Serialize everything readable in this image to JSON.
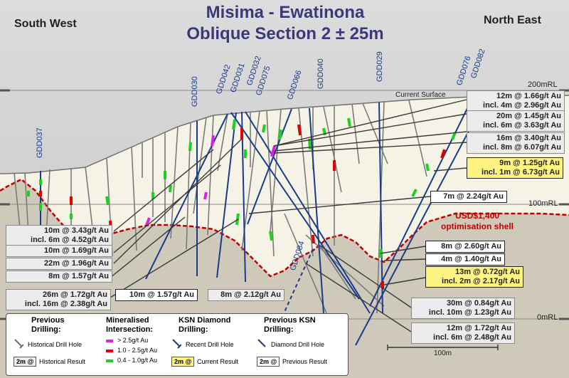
{
  "title": {
    "line1": "Misima - Ewatinona",
    "line2": "Oblique Section 2 ± 25m"
  },
  "directions": {
    "left": "South West",
    "right": "North East"
  },
  "surface_label": "Current Surface",
  "shell_label": {
    "line1": "USD$1,400",
    "line2": "optimisation shell"
  },
  "elevations": [
    {
      "label": "200mRL"
    },
    {
      "label": "100mRL"
    },
    {
      "label": "0mRL"
    }
  ],
  "scale_label": "100m",
  "holes": [
    {
      "name": "GDD037",
      "style": "recent"
    },
    {
      "name": "GDD030",
      "style": "recent"
    },
    {
      "name": "GDD042",
      "style": "recent"
    },
    {
      "name": "GDD031",
      "style": "recent"
    },
    {
      "name": "GDD032",
      "style": "recent"
    },
    {
      "name": "GDD075",
      "style": "recent"
    },
    {
      "name": "GDD066",
      "style": "recent"
    },
    {
      "name": "GDD040",
      "style": "recent"
    },
    {
      "name": "GDD029",
      "style": "recent"
    },
    {
      "name": "GDD076",
      "style": "recent"
    },
    {
      "name": "GDD082",
      "style": "recent"
    },
    {
      "name": "GDD084",
      "style": "planned"
    }
  ],
  "results": [
    {
      "line1": "12m @ 1.66g/t Au",
      "line2": "incl. 4m @ 2.96g/t Au",
      "type": "previous"
    },
    {
      "line1": "20m @ 1.45g/t Au",
      "line2": "incl. 6m @ 3.63g/t Au",
      "type": "previous"
    },
    {
      "line1": "16m @ 3.40g/t Au",
      "line2": "incl. 8m @ 6.07g/t Au",
      "type": "previous"
    },
    {
      "line1": "9m @ 1.25g/t Au",
      "line2": "incl. 1m @ 6.73g/t Au",
      "type": "current"
    },
    {
      "line1": "7m @ 2.24g/t Au",
      "type": "current-white"
    },
    {
      "line1": "10m @ 3.43g/t Au",
      "line2": "incl. 6m @ 4.52g/t Au",
      "type": "previous"
    },
    {
      "line1": "10m @ 1.69g/t Au",
      "type": "previous"
    },
    {
      "line1": "22m @ 1.96g/t Au",
      "type": "previous"
    },
    {
      "line1": "8m @ 1.57g/t Au",
      "type": "previous"
    },
    {
      "line1": "26m @ 1.72g/t Au",
      "line2": "incl. 16m @ 2.38g/t Au",
      "type": "previous"
    },
    {
      "line1": "10m @ 1.57g/t Au",
      "type": "current-white"
    },
    {
      "line1": "8m @ 2.12g/t Au",
      "type": "previous"
    },
    {
      "line1": "8m @ 2.60g/t Au",
      "type": "current-white"
    },
    {
      "line1": "4m @ 1.40g/t Au",
      "type": "current-white"
    },
    {
      "line1": "13m @ 0.72g/t Au",
      "line2": "incl. 2m @ 2.17g/t Au",
      "type": "current"
    },
    {
      "line1": "30m @ 0.84g/t Au",
      "line2": "incl. 10m @ 1.23g/t Au",
      "type": "previous"
    },
    {
      "line1": "12m @ 1.72g/t Au",
      "line2": "incl. 6m @ 2.48g/t Au",
      "type": "previous"
    }
  ],
  "legend": {
    "previous_drilling": {
      "title1": "Previous",
      "title2": "Drilling:",
      "hole_label": "Historical Drill Hole",
      "result_label": "Historical Result",
      "badge": "2m @"
    },
    "mineralised": {
      "title1": "Mineralised",
      "title2": "Intersection:",
      "items": [
        {
          "label": "> 2.5g/t Au",
          "color": "#e020e0"
        },
        {
          "label": "1.0 - 2.5g/t Au",
          "color": "#e00000"
        },
        {
          "label": "0.4 - 1.0g/t Au",
          "color": "#20d020"
        }
      ]
    },
    "ksn_diamond": {
      "title1": "KSN Diamond",
      "title2": "Drilling:",
      "hole_label": "Recent Drill Hole",
      "result_label": "Current Result",
      "badge": "2m @"
    },
    "previous_ksn": {
      "title1": "Previous KSN",
      "title2": "Drilling:",
      "hole_label": "Diamond Drill Hole",
      "result_label": "Previous Result",
      "badge": "2m @"
    }
  },
  "colors": {
    "rock": "#f5f3e6",
    "below_shell": "#cfc9ba",
    "shell_line": "#c00000",
    "hole_recent": "#1a3a8c",
    "hole_historical": "#707070",
    "title": "#3a3a7a",
    "current_box": "#fff480"
  }
}
